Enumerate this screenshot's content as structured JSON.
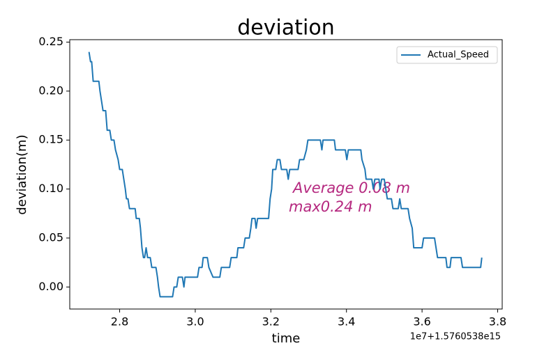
{
  "chart_data": {
    "type": "line",
    "title": "deviation",
    "xlabel": "time",
    "ylabel": "deviation(m)",
    "x_offset_label": "1e7+1.5760538e15",
    "annotations": [
      "Average 0.08 m",
      "max0.24 m"
    ],
    "annotation_color": "#b5287f",
    "legend": "upper right",
    "grid": false,
    "xlim": [
      2.668,
      3.812
    ],
    "ylim": [
      -0.0225,
      0.2525
    ],
    "xticks": [
      {
        "value": 2.8,
        "label": "2.8"
      },
      {
        "value": 3.0,
        "label": "3.0"
      },
      {
        "value": 3.2,
        "label": "3.2"
      },
      {
        "value": 3.4,
        "label": "3.4"
      },
      {
        "value": 3.6,
        "label": "3.6"
      },
      {
        "value": 3.8,
        "label": "3.8"
      }
    ],
    "yticks": [
      {
        "value": 0.0,
        "label": "0.00"
      },
      {
        "value": 0.05,
        "label": "0.05"
      },
      {
        "value": 0.1,
        "label": "0.10"
      },
      {
        "value": 0.15,
        "label": "0.15"
      },
      {
        "value": 0.2,
        "label": "0.20"
      },
      {
        "value": 0.25,
        "label": "0.25"
      }
    ],
    "x": [
      2.719,
      2.723,
      2.726,
      2.73,
      2.745,
      2.748,
      2.752,
      2.756,
      2.763,
      2.767,
      2.774,
      2.778,
      2.785,
      2.789,
      2.796,
      2.8,
      2.807,
      2.811,
      2.815,
      2.818,
      2.822,
      2.826,
      2.829,
      2.841,
      2.844,
      2.852,
      2.855,
      2.859,
      2.863,
      2.866,
      2.87,
      2.874,
      2.881,
      2.885,
      2.896,
      2.9,
      2.903,
      2.907,
      2.94,
      2.944,
      2.951,
      2.955,
      2.966,
      2.97,
      2.973,
      3.006,
      3.01,
      3.018,
      3.021,
      3.032,
      3.036,
      3.047,
      3.065,
      3.069,
      3.091,
      3.095,
      3.11,
      3.113,
      3.128,
      3.132,
      3.143,
      3.147,
      3.15,
      3.158,
      3.161,
      3.165,
      3.194,
      3.198,
      3.202,
      3.205,
      3.213,
      3.217,
      3.224,
      3.228,
      3.242,
      3.246,
      3.25,
      3.272,
      3.276,
      3.287,
      3.294,
      3.298,
      3.331,
      3.335,
      3.338,
      3.368,
      3.371,
      3.397,
      3.401,
      3.405,
      3.438,
      3.441,
      3.449,
      3.452,
      3.467,
      3.471,
      3.475,
      3.486,
      3.489,
      3.493,
      3.5,
      3.504,
      3.508,
      3.519,
      3.523,
      3.537,
      3.541,
      3.545,
      3.563,
      3.567,
      3.574,
      3.578,
      3.6,
      3.604,
      3.633,
      3.637,
      3.641,
      3.663,
      3.666,
      3.674,
      3.677,
      3.703,
      3.707,
      3.755,
      3.758
    ],
    "series": [
      {
        "name": "Actual_Speed",
        "color": "#1f77b4",
        "values": [
          0.24,
          0.23,
          0.23,
          0.21,
          0.21,
          0.2,
          0.19,
          0.18,
          0.18,
          0.16,
          0.16,
          0.15,
          0.15,
          0.14,
          0.13,
          0.12,
          0.12,
          0.11,
          0.1,
          0.09,
          0.09,
          0.08,
          0.08,
          0.08,
          0.07,
          0.07,
          0.06,
          0.04,
          0.03,
          0.03,
          0.04,
          0.03,
          0.03,
          0.02,
          0.02,
          0.01,
          0.0,
          -0.01,
          -0.01,
          0.0,
          0.0,
          0.01,
          0.01,
          0.0,
          0.01,
          0.01,
          0.02,
          0.02,
          0.03,
          0.03,
          0.02,
          0.01,
          0.01,
          0.02,
          0.02,
          0.03,
          0.03,
          0.04,
          0.04,
          0.05,
          0.05,
          0.06,
          0.07,
          0.07,
          0.06,
          0.07,
          0.07,
          0.09,
          0.1,
          0.12,
          0.12,
          0.13,
          0.13,
          0.12,
          0.12,
          0.11,
          0.12,
          0.12,
          0.13,
          0.13,
          0.14,
          0.15,
          0.15,
          0.14,
          0.15,
          0.15,
          0.14,
          0.14,
          0.13,
          0.14,
          0.14,
          0.13,
          0.12,
          0.11,
          0.11,
          0.1,
          0.11,
          0.11,
          0.1,
          0.11,
          0.11,
          0.1,
          0.09,
          0.09,
          0.08,
          0.08,
          0.09,
          0.08,
          0.08,
          0.07,
          0.06,
          0.04,
          0.04,
          0.05,
          0.05,
          0.04,
          0.03,
          0.03,
          0.02,
          0.02,
          0.03,
          0.03,
          0.02,
          0.02,
          0.03
        ]
      }
    ]
  }
}
